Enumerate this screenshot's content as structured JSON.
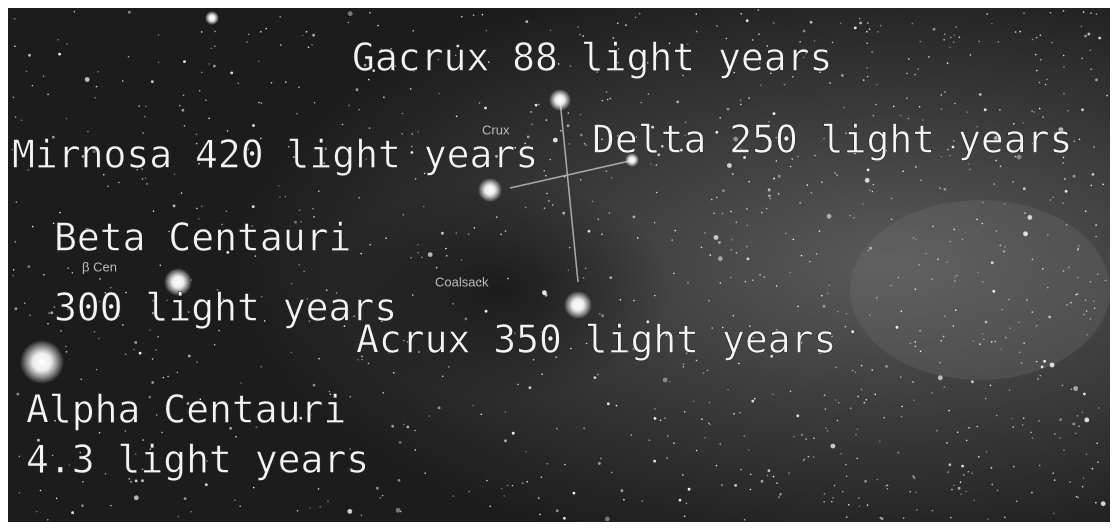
{
  "labels": {
    "gacrux": "Gacrux 88 light years",
    "mimosa": "Mirnosa 420 light years",
    "delta": "Delta 250 light years",
    "beta_name": "Beta Centauri",
    "beta_distance": "300 light years",
    "acrux": "Acrux 350 light years",
    "alpha_name": "Alpha Centauri",
    "alpha_distance": "4.3 light years"
  },
  "annotations": {
    "crux": "Crux",
    "beta_cen": "β Cen",
    "coalsack": "Coalsack"
  }
}
